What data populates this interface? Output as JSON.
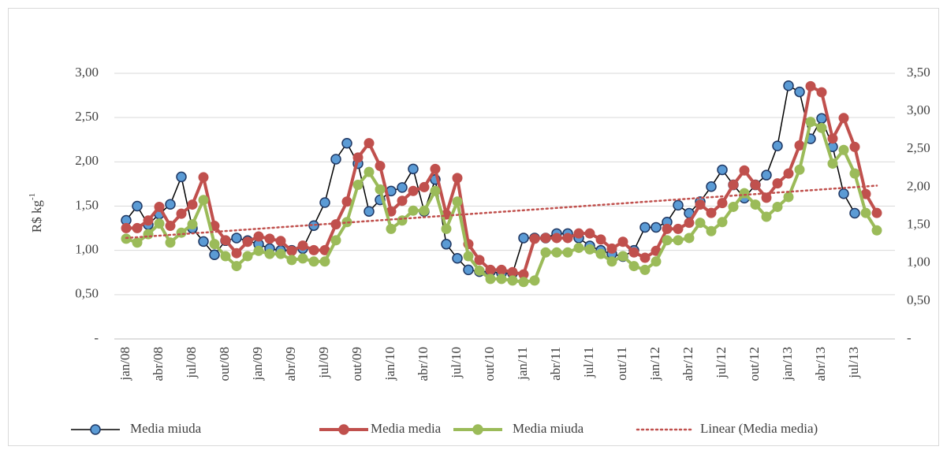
{
  "chart_data": {
    "type": "line",
    "y_label": "R$ kg",
    "y_label_sup": "-1",
    "categories": [
      "jan/08",
      null,
      null,
      "abr/08",
      null,
      null,
      "jul/08",
      null,
      null,
      "out/08",
      null,
      null,
      "jan/09",
      null,
      null,
      "abr/09",
      null,
      null,
      "jul/09",
      null,
      null,
      "out/09",
      null,
      null,
      "jan/10",
      null,
      null,
      "abr/10",
      null,
      null,
      "jul/10",
      null,
      null,
      "out/10",
      null,
      null,
      "jan/11",
      null,
      null,
      "abr/11",
      null,
      null,
      "jul/11",
      null,
      null,
      "out/11",
      null,
      null,
      "jan/12",
      null,
      null,
      "abr/12",
      null,
      null,
      "jul/12",
      null,
      null,
      "out/12",
      null,
      null,
      "jan/13",
      null,
      null,
      "abr/13",
      null,
      null,
      "jul/13",
      null,
      null
    ],
    "ylim": [
      0,
      3.0
    ],
    "yticks": [
      {
        "value": 0,
        "label": "-"
      },
      {
        "value": 0.5,
        "label": "0,50"
      },
      {
        "value": 1.0,
        "label": "1,00"
      },
      {
        "value": 1.5,
        "label": "1,50"
      },
      {
        "value": 2.0,
        "label": "2,00"
      },
      {
        "value": 2.5,
        "label": "2,50"
      },
      {
        "value": 3.0,
        "label": "3,00"
      }
    ],
    "y2lim": [
      0,
      3.5
    ],
    "y2ticks": [
      {
        "value": 0,
        "label": "-"
      },
      {
        "value": 0.5,
        "label": "0,50"
      },
      {
        "value": 1.0,
        "label": "1,00"
      },
      {
        "value": 1.5,
        "label": "1,50"
      },
      {
        "value": 2.0,
        "label": "2,00"
      },
      {
        "value": 2.5,
        "label": "2,50"
      },
      {
        "value": 3.0,
        "label": "3,00"
      },
      {
        "value": 3.5,
        "label": "3,50"
      }
    ],
    "grid": true,
    "legend": "bottom",
    "series": [
      {
        "name": "Media miuda",
        "color": "#5b9bd5",
        "line_color": "#000000",
        "axis": "y",
        "values": [
          1.34,
          1.5,
          1.29,
          1.41,
          1.52,
          1.83,
          1.25,
          1.1,
          0.95,
          1.11,
          1.14,
          1.11,
          1.07,
          1.02,
          1.0,
          1.0,
          1.02,
          1.28,
          1.54,
          2.03,
          2.21,
          1.98,
          1.44,
          1.57,
          1.67,
          1.71,
          1.92,
          1.44,
          1.8,
          1.07,
          0.91,
          0.78,
          0.76,
          0.76,
          0.74,
          0.74,
          1.14,
          1.14,
          1.14,
          1.19,
          1.19,
          1.14,
          1.05,
          1.0,
          0.96,
          0.93,
          1.0,
          1.26,
          1.26,
          1.32,
          1.51,
          1.42,
          1.55,
          1.72,
          1.91,
          1.74,
          1.59,
          1.74,
          1.85,
          2.18,
          2.86,
          2.79,
          2.26,
          2.49,
          2.17,
          1.64,
          1.42,
          null,
          null
        ]
      },
      {
        "name": "Media media",
        "color": "#c0504d",
        "line_color": "#c0504d",
        "axis": "y2",
        "values": [
          1.46,
          1.46,
          1.56,
          1.74,
          1.49,
          1.65,
          1.77,
          2.13,
          1.49,
          1.3,
          1.13,
          1.28,
          1.35,
          1.32,
          1.29,
          1.16,
          1.23,
          1.17,
          1.17,
          1.51,
          1.81,
          2.39,
          2.58,
          2.28,
          1.68,
          1.82,
          1.95,
          2.0,
          2.24,
          1.64,
          2.12,
          1.25,
          1.04,
          0.91,
          0.91,
          0.88,
          0.85,
          1.32,
          1.33,
          1.33,
          1.33,
          1.39,
          1.39,
          1.31,
          1.19,
          1.28,
          1.14,
          1.07,
          1.16,
          1.45,
          1.45,
          1.53,
          1.77,
          1.66,
          1.79,
          2.03,
          2.22,
          2.03,
          1.86,
          2.05,
          2.18,
          2.55,
          3.33,
          3.25,
          2.64,
          2.91,
          2.53,
          1.91,
          1.66
        ]
      },
      {
        "name": "Media miuda",
        "color": "#9bbb59",
        "line_color": "#9bbb59",
        "axis": "y2",
        "values": [
          1.32,
          1.27,
          1.38,
          1.52,
          1.27,
          1.4,
          1.51,
          1.83,
          1.25,
          1.09,
          0.96,
          1.09,
          1.16,
          1.12,
          1.12,
          1.04,
          1.06,
          1.02,
          1.02,
          1.3,
          1.54,
          2.03,
          2.2,
          1.97,
          1.45,
          1.56,
          1.69,
          1.69,
          1.95,
          1.45,
          1.81,
          1.09,
          0.9,
          0.79,
          0.79,
          0.77,
          0.75,
          0.77,
          1.14,
          1.14,
          1.14,
          1.2,
          1.18,
          1.12,
          1.02,
          1.09,
          0.96,
          0.91,
          1.02,
          1.3,
          1.3,
          1.33,
          1.53,
          1.42,
          1.54,
          1.74,
          1.92,
          1.77,
          1.61,
          1.74,
          1.87,
          2.23,
          2.86,
          2.78,
          2.31,
          2.49,
          2.18,
          1.66,
          1.43
        ]
      }
    ],
    "trend": {
      "name": "Linear (Media media)",
      "color": "#c0504d",
      "axis": "y2",
      "values": [
        1.33,
        2.02
      ]
    }
  }
}
